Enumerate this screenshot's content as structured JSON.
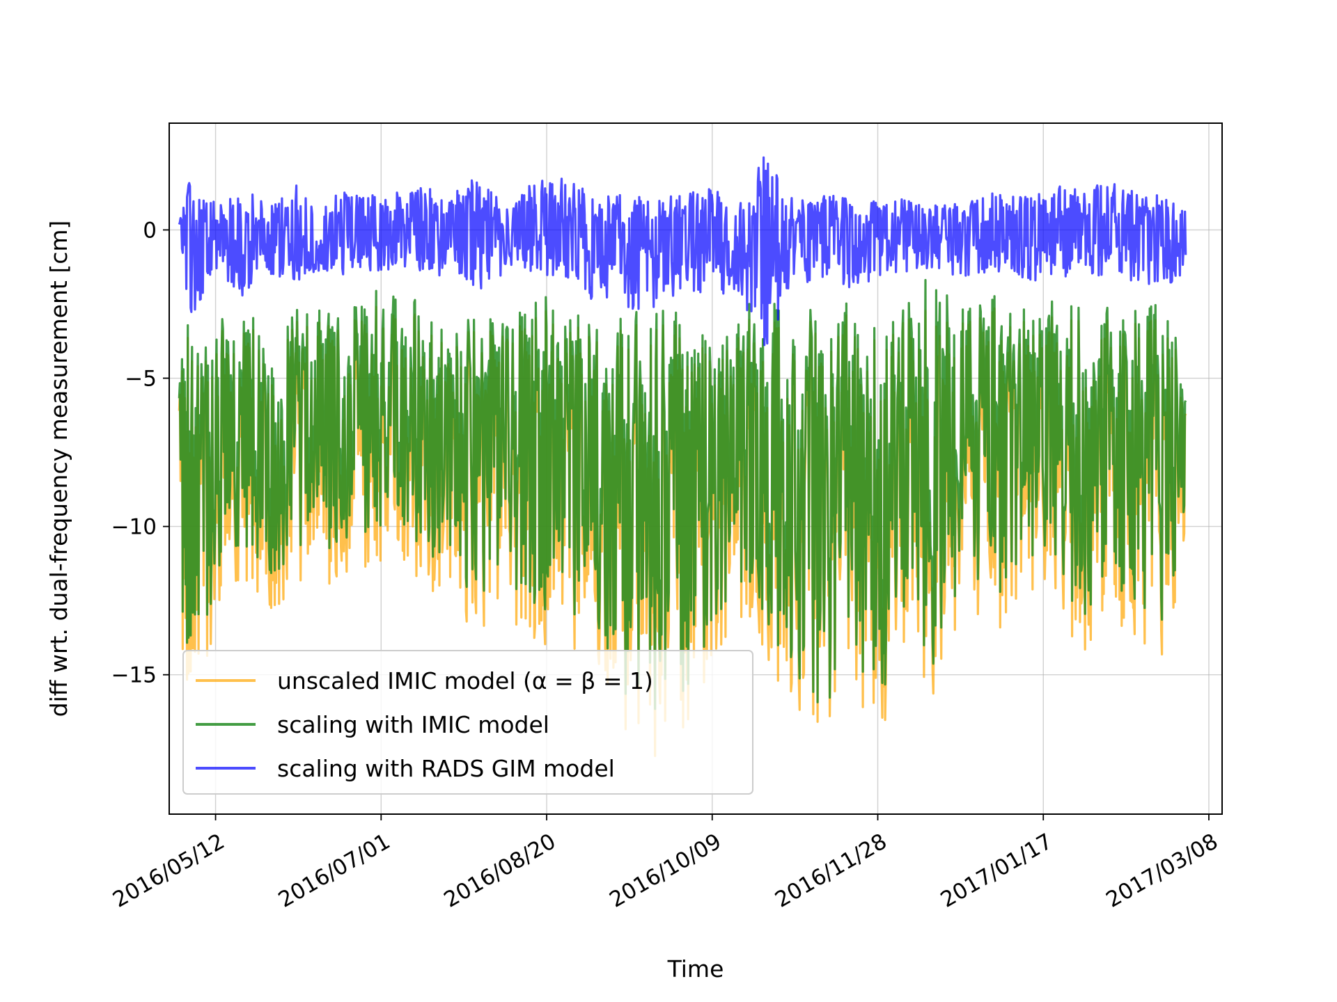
{
  "chart_data": {
    "type": "line",
    "title": "",
    "xlabel": "Time",
    "ylabel": "diff wrt. dual-frequency measurement [cm]",
    "x_range": [
      "2016-04-28",
      "2017-03-12"
    ],
    "x_data_range": [
      "2016-05-01",
      "2017-03-01"
    ],
    "ylim": [
      -19.7,
      3.6
    ],
    "grid": true,
    "legend_position": "lower-left",
    "x_ticks": [
      {
        "date": "2016-05-12",
        "label": "2016/05/12"
      },
      {
        "date": "2016-07-01",
        "label": "2016/07/01"
      },
      {
        "date": "2016-08-20",
        "label": "2016/08/20"
      },
      {
        "date": "2016-10-09",
        "label": "2016/10/09"
      },
      {
        "date": "2016-11-28",
        "label": "2016/11/28"
      },
      {
        "date": "2017-01-17",
        "label": "2017/01/17"
      },
      {
        "date": "2017-03-08",
        "label": "2017/03/08"
      }
    ],
    "y_ticks": [
      {
        "value": 0,
        "label": "0"
      },
      {
        "value": -5,
        "label": "−5"
      },
      {
        "value": -10,
        "label": "−10"
      },
      {
        "value": -15,
        "label": "−15"
      }
    ],
    "series": [
      {
        "name": "unscaled IMIC model (α = β = 1)",
        "color": "#FFA500",
        "opacity": 0.7,
        "x": [
          "2016-05-01",
          "2016-05-02",
          "2016-05-04",
          "2016-05-07",
          "2016-05-10",
          "2016-05-13",
          "2016-05-17",
          "2016-05-21",
          "2016-05-25",
          "2016-05-30",
          "2016-06-05",
          "2016-06-12",
          "2016-06-20",
          "2016-06-28",
          "2016-07-06",
          "2016-07-14",
          "2016-07-22",
          "2016-07-30",
          "2016-08-08",
          "2016-08-17",
          "2016-08-26",
          "2016-09-04",
          "2016-09-13",
          "2016-09-22",
          "2016-10-01",
          "2016-10-09",
          "2016-10-17",
          "2016-10-25",
          "2016-11-03",
          "2016-11-12",
          "2016-11-20",
          "2016-11-28",
          "2016-12-06",
          "2016-12-15",
          "2016-12-24",
          "2017-01-02",
          "2017-01-11",
          "2017-01-20",
          "2017-01-29",
          "2017-02-07",
          "2017-02-16",
          "2017-02-23",
          "2017-03-01"
        ],
        "upper": [
          -6.0,
          -3.5,
          -2.9,
          -4.6,
          -3.4,
          -3.2,
          -4.0,
          -3.4,
          -3.2,
          -3.6,
          -3.1,
          -3.0,
          -3.3,
          -2.4,
          -2.1,
          -2.9,
          -3.5,
          -3.2,
          -3.4,
          -2.6,
          -3.0,
          -3.6,
          -3.3,
          -2.8,
          -3.4,
          -3.6,
          -3.0,
          -2.6,
          -3.2,
          -3.0,
          -2.8,
          -3.6,
          -2.8,
          -2.6,
          -2.7,
          -2.5,
          -2.9,
          -2.4,
          -2.7,
          -2.6,
          -2.8,
          -3.2,
          -4.8
        ],
        "lower": [
          -8.0,
          -15.8,
          -15.2,
          -15.0,
          -14.4,
          -13.0,
          -12.0,
          -12.5,
          -12.8,
          -13.1,
          -12.0,
          -11.8,
          -12.2,
          -11.6,
          -11.0,
          -12.4,
          -13.5,
          -13.8,
          -13.0,
          -14.2,
          -14.9,
          -14.4,
          -17.0,
          -17.8,
          -16.8,
          -14.6,
          -13.0,
          -14.2,
          -16.8,
          -17.1,
          -15.2,
          -17.6,
          -14.0,
          -15.8,
          -12.8,
          -13.6,
          -12.8,
          -13.0,
          -14.2,
          -13.4,
          -13.9,
          -15.1,
          -10.6
        ]
      },
      {
        "name": "scaling with IMIC model",
        "color": "#228B22",
        "opacity": 0.85,
        "x": [
          "2016-05-01",
          "2016-05-02",
          "2016-05-04",
          "2016-05-07",
          "2016-05-10",
          "2016-05-13",
          "2016-05-17",
          "2016-05-21",
          "2016-05-25",
          "2016-05-30",
          "2016-06-05",
          "2016-06-12",
          "2016-06-20",
          "2016-06-28",
          "2016-07-06",
          "2016-07-14",
          "2016-07-22",
          "2016-07-30",
          "2016-08-08",
          "2016-08-17",
          "2016-08-26",
          "2016-09-04",
          "2016-09-13",
          "2016-09-22",
          "2016-10-01",
          "2016-10-09",
          "2016-10-17",
          "2016-10-25",
          "2016-11-03",
          "2016-11-12",
          "2016-11-20",
          "2016-11-28",
          "2016-12-06",
          "2016-12-15",
          "2016-12-24",
          "2017-01-02",
          "2017-01-11",
          "2017-01-20",
          "2017-01-29",
          "2017-02-07",
          "2017-02-16",
          "2017-02-23",
          "2017-03-01"
        ],
        "upper": [
          -5.6,
          -3.2,
          -2.5,
          -4.2,
          -3.0,
          -2.8,
          -3.6,
          -3.0,
          -2.8,
          -3.2,
          -2.7,
          -2.6,
          -2.9,
          -1.9,
          -1.5,
          -2.5,
          -3.1,
          -2.8,
          -3.0,
          -2.1,
          -2.6,
          -3.2,
          -2.9,
          -2.3,
          -3.0,
          -3.2,
          -2.6,
          -1.9,
          -2.8,
          -2.6,
          -2.4,
          -3.2,
          -2.4,
          -1.3,
          -2.3,
          -2.1,
          -2.5,
          -1.9,
          -2.3,
          -2.2,
          -2.4,
          -2.6,
          -4.6
        ],
        "lower": [
          -7.4,
          -14.4,
          -14.0,
          -13.6,
          -13.0,
          -11.8,
          -10.8,
          -11.3,
          -11.6,
          -11.9,
          -10.8,
          -10.6,
          -11.0,
          -10.4,
          -9.8,
          -11.2,
          -12.3,
          -12.6,
          -11.8,
          -13.0,
          -13.7,
          -13.2,
          -15.8,
          -16.2,
          -15.6,
          -13.4,
          -11.8,
          -13.0,
          -15.6,
          -16.6,
          -14.0,
          -16.4,
          -12.8,
          -14.8,
          -11.6,
          -12.4,
          -11.6,
          -11.8,
          -13.0,
          -12.2,
          -12.7,
          -13.9,
          -9.6
        ]
      },
      {
        "name": "scaling with RADS GIM model",
        "color": "#0000FF",
        "opacity": 0.7,
        "x": [
          "2016-05-01",
          "2016-05-02",
          "2016-05-04",
          "2016-05-07",
          "2016-05-10",
          "2016-05-13",
          "2016-05-17",
          "2016-05-21",
          "2016-05-25",
          "2016-05-30",
          "2016-06-05",
          "2016-06-12",
          "2016-06-20",
          "2016-06-28",
          "2016-07-06",
          "2016-07-14",
          "2016-07-22",
          "2016-07-30",
          "2016-08-08",
          "2016-08-17",
          "2016-08-26",
          "2016-09-04",
          "2016-09-13",
          "2016-09-22",
          "2016-10-01",
          "2016-10-09",
          "2016-10-17",
          "2016-10-25",
          "2016-11-03",
          "2016-11-12",
          "2016-11-20",
          "2016-11-28",
          "2016-12-06",
          "2016-12-15",
          "2016-12-24",
          "2017-01-02",
          "2017-01-11",
          "2017-01-20",
          "2017-01-29",
          "2017-02-07",
          "2017-02-16",
          "2017-02-23",
          "2017-03-01"
        ],
        "upper": [
          0.2,
          0.8,
          1.6,
          1.3,
          1.1,
          0.9,
          1.2,
          1.4,
          1.3,
          1.0,
          1.6,
          1.0,
          1.3,
          1.2,
          1.3,
          1.5,
          1.2,
          1.8,
          1.0,
          1.7,
          1.8,
          1.1,
          1.2,
          1.0,
          1.3,
          1.4,
          1.1,
          2.6,
          1.0,
          1.2,
          1.1,
          1.0,
          1.1,
          0.9,
          0.9,
          1.3,
          1.1,
          1.5,
          1.4,
          1.7,
          1.3,
          1.1,
          1.2
        ],
        "lower": [
          -0.3,
          -0.8,
          -3.3,
          -2.6,
          -1.6,
          -1.5,
          -1.9,
          -2.4,
          -1.3,
          -1.6,
          -1.8,
          -1.5,
          -1.5,
          -1.4,
          -1.3,
          -1.5,
          -1.7,
          -2.1,
          -1.5,
          -1.4,
          -2.0,
          -2.4,
          -2.6,
          -3.1,
          -2.3,
          -2.1,
          -2.3,
          -4.0,
          -1.9,
          -1.7,
          -2.2,
          -1.6,
          -1.4,
          -1.5,
          -1.6,
          -1.4,
          -1.7,
          -1.8,
          -1.5,
          -1.7,
          -1.8,
          -1.9,
          -1.7
        ]
      }
    ]
  }
}
